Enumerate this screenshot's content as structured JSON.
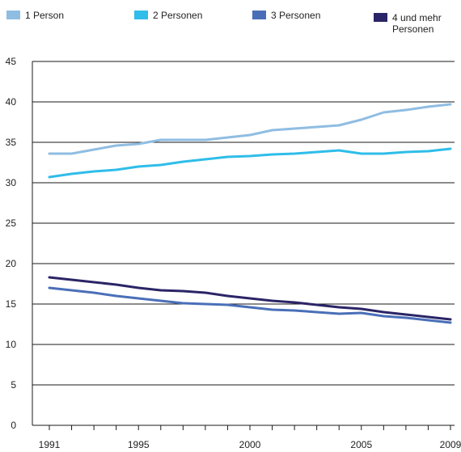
{
  "chart_data": {
    "type": "line",
    "title": "",
    "xlabel": "",
    "ylabel": "",
    "ylim": [
      0,
      45
    ],
    "xlim": [
      1991,
      2009
    ],
    "yticks": [
      0,
      5,
      10,
      15,
      20,
      25,
      30,
      35,
      40,
      45
    ],
    "xtick_labels": [
      "1991",
      "1995",
      "2000",
      "2005",
      "2009"
    ],
    "grid": "horizontal",
    "legend_position": "top",
    "x": [
      1991,
      1992,
      1993,
      1994,
      1995,
      1996,
      1997,
      1998,
      1999,
      2000,
      2001,
      2002,
      2003,
      2004,
      2005,
      2006,
      2007,
      2008,
      2009
    ],
    "series": [
      {
        "name": "1 Person",
        "color": "#8fbde2",
        "values": [
          33.6,
          33.6,
          34.1,
          34.6,
          34.8,
          35.3,
          35.3,
          35.3,
          35.6,
          35.9,
          36.5,
          36.7,
          36.9,
          37.1,
          37.8,
          38.7,
          39.0,
          39.4,
          39.7
        ]
      },
      {
        "name": "2 Personen",
        "color": "#2fbde9",
        "values": [
          30.7,
          31.1,
          31.4,
          31.6,
          32.0,
          32.2,
          32.6,
          32.9,
          33.2,
          33.3,
          33.5,
          33.6,
          33.8,
          34.0,
          33.6,
          33.6,
          33.8,
          33.9,
          34.2
        ]
      },
      {
        "name": "3 Personen",
        "color": "#4a6fb8",
        "values": [
          17.0,
          16.7,
          16.4,
          16.0,
          15.7,
          15.4,
          15.1,
          15.0,
          14.9,
          14.6,
          14.3,
          14.2,
          14.0,
          13.8,
          13.9,
          13.5,
          13.3,
          13.0,
          12.7
        ]
      },
      {
        "name": "4 und mehr\nPersonen",
        "color": "#2a2566",
        "values": [
          18.3,
          18.0,
          17.7,
          17.4,
          17.0,
          16.7,
          16.6,
          16.4,
          16.0,
          15.7,
          15.4,
          15.2,
          14.9,
          14.6,
          14.4,
          14.0,
          13.7,
          13.4,
          13.1
        ]
      }
    ]
  }
}
